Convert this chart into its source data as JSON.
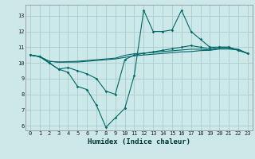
{
  "title": "",
  "xlabel": "Humidex (Indice chaleur)",
  "bg_color": "#cce8e8",
  "grid_color": "#aacccc",
  "line_color": "#006868",
  "xlim": [
    -0.5,
    23.5
  ],
  "ylim": [
    5.7,
    13.7
  ],
  "xticks": [
    0,
    1,
    2,
    3,
    4,
    5,
    6,
    7,
    8,
    9,
    10,
    11,
    12,
    13,
    14,
    15,
    16,
    17,
    18,
    19,
    20,
    21,
    22,
    23
  ],
  "yticks": [
    6,
    7,
    8,
    9,
    10,
    11,
    12,
    13
  ],
  "series": [
    [
      10.5,
      10.4,
      10.0,
      9.6,
      9.4,
      8.5,
      8.3,
      7.3,
      5.9,
      6.5,
      7.1,
      9.2,
      13.35,
      12.0,
      12.0,
      12.1,
      13.35,
      12.0,
      11.5,
      11.0,
      11.0,
      11.0,
      10.8,
      10.6
    ],
    [
      10.5,
      10.4,
      10.0,
      9.6,
      9.7,
      9.5,
      9.3,
      9.0,
      8.2,
      8.0,
      10.2,
      10.5,
      10.6,
      10.7,
      10.8,
      10.9,
      11.0,
      11.1,
      11.0,
      10.9,
      11.0,
      11.0,
      10.8,
      10.6
    ],
    [
      10.5,
      10.4,
      10.1,
      10.05,
      10.05,
      10.05,
      10.1,
      10.15,
      10.2,
      10.25,
      10.35,
      10.45,
      10.5,
      10.55,
      10.6,
      10.65,
      10.7,
      10.72,
      10.78,
      10.8,
      10.88,
      10.88,
      10.82,
      10.6
    ],
    [
      10.5,
      10.4,
      10.1,
      10.05,
      10.08,
      10.1,
      10.15,
      10.2,
      10.25,
      10.3,
      10.48,
      10.58,
      10.62,
      10.67,
      10.72,
      10.77,
      10.82,
      10.87,
      10.87,
      10.82,
      10.92,
      10.92,
      10.87,
      10.6
    ]
  ]
}
